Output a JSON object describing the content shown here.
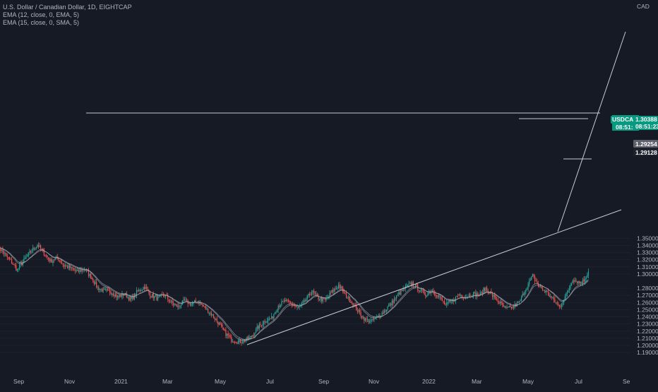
{
  "header": {
    "symbol_line": "U.S. Dollar / Canadian Dollar, 1D, EIGHTCAP",
    "indicator_1": "EMA (12, close, 0, EMA, 5)",
    "indicator_2": "EMA (15, close, 0, SMA, 5)"
  },
  "chart_data": {
    "type": "candlestick",
    "currency_label": "CAD",
    "y_ticks": [
      "1.35000",
      "1.34000",
      "1.33000",
      "1.32000",
      "1.31000",
      "1.30000",
      "1.28000",
      "1.27000",
      "1.26000",
      "1.25000",
      "1.24000",
      "1.23000",
      "1.22000",
      "1.21000",
      "1.20000",
      "1.19000"
    ],
    "x_ticks": [
      "Sep",
      "Nov",
      "2021",
      "Mar",
      "May",
      "Jul",
      "Sep",
      "Nov",
      "2022",
      "Mar",
      "May",
      "Jul",
      "Se"
    ],
    "ylim": [
      1.1852,
      1.3612
    ],
    "price_labels": {
      "symbol": "USDCAD",
      "last_price": "1.30388",
      "countdown": "08:51:23",
      "label_a": "1.29254",
      "label_b": "1.29128"
    },
    "colors": {
      "up": "#26a69a",
      "down": "#ef5350",
      "background": "#161a25",
      "ema": "#a9acb5",
      "trendline": "#c8cad3",
      "tag": "#089981"
    },
    "path_anchors": [
      {
        "i": 0,
        "v": 1.34
      },
      {
        "i": 6,
        "v": 1.329
      },
      {
        "i": 12,
        "v": 1.318
      },
      {
        "i": 18,
        "v": 1.306
      },
      {
        "i": 24,
        "v": 1.319
      },
      {
        "i": 30,
        "v": 1.331
      },
      {
        "i": 36,
        "v": 1.341
      },
      {
        "i": 42,
        "v": 1.329
      },
      {
        "i": 48,
        "v": 1.318
      },
      {
        "i": 54,
        "v": 1.322
      },
      {
        "i": 60,
        "v": 1.312
      },
      {
        "i": 66,
        "v": 1.308
      },
      {
        "i": 72,
        "v": 1.303
      },
      {
        "i": 78,
        "v": 1.307
      },
      {
        "i": 84,
        "v": 1.296
      },
      {
        "i": 90,
        "v": 1.281
      },
      {
        "i": 96,
        "v": 1.276
      },
      {
        "i": 102,
        "v": 1.275
      },
      {
        "i": 108,
        "v": 1.268
      },
      {
        "i": 114,
        "v": 1.272
      },
      {
        "i": 120,
        "v": 1.264
      },
      {
        "i": 126,
        "v": 1.276
      },
      {
        "i": 132,
        "v": 1.282
      },
      {
        "i": 138,
        "v": 1.27
      },
      {
        "i": 144,
        "v": 1.266
      },
      {
        "i": 150,
        "v": 1.271
      },
      {
        "i": 156,
        "v": 1.26
      },
      {
        "i": 162,
        "v": 1.254
      },
      {
        "i": 168,
        "v": 1.262
      },
      {
        "i": 174,
        "v": 1.258
      },
      {
        "i": 180,
        "v": 1.262
      },
      {
        "i": 186,
        "v": 1.253
      },
      {
        "i": 192,
        "v": 1.244
      },
      {
        "i": 198,
        "v": 1.232
      },
      {
        "i": 204,
        "v": 1.218
      },
      {
        "i": 210,
        "v": 1.208
      },
      {
        "i": 216,
        "v": 1.205
      },
      {
        "i": 222,
        "v": 1.207
      },
      {
        "i": 228,
        "v": 1.212
      },
      {
        "i": 234,
        "v": 1.226
      },
      {
        "i": 240,
        "v": 1.235
      },
      {
        "i": 246,
        "v": 1.238
      },
      {
        "i": 252,
        "v": 1.256
      },
      {
        "i": 258,
        "v": 1.262
      },
      {
        "i": 264,
        "v": 1.258
      },
      {
        "i": 270,
        "v": 1.252
      },
      {
        "i": 276,
        "v": 1.262
      },
      {
        "i": 282,
        "v": 1.276
      },
      {
        "i": 288,
        "v": 1.266
      },
      {
        "i": 294,
        "v": 1.263
      },
      {
        "i": 300,
        "v": 1.275
      },
      {
        "i": 306,
        "v": 1.284
      },
      {
        "i": 312,
        "v": 1.271
      },
      {
        "i": 318,
        "v": 1.26
      },
      {
        "i": 324,
        "v": 1.247
      },
      {
        "i": 330,
        "v": 1.236
      },
      {
        "i": 336,
        "v": 1.234
      },
      {
        "i": 342,
        "v": 1.241
      },
      {
        "i": 348,
        "v": 1.25
      },
      {
        "i": 354,
        "v": 1.26
      },
      {
        "i": 360,
        "v": 1.272
      },
      {
        "i": 366,
        "v": 1.281
      },
      {
        "i": 372,
        "v": 1.287
      },
      {
        "i": 378,
        "v": 1.279
      },
      {
        "i": 384,
        "v": 1.271
      },
      {
        "i": 390,
        "v": 1.277
      },
      {
        "i": 396,
        "v": 1.268
      },
      {
        "i": 402,
        "v": 1.256
      },
      {
        "i": 408,
        "v": 1.262
      },
      {
        "i": 414,
        "v": 1.271
      },
      {
        "i": 420,
        "v": 1.268
      },
      {
        "i": 426,
        "v": 1.273
      },
      {
        "i": 432,
        "v": 1.27
      },
      {
        "i": 438,
        "v": 1.28
      },
      {
        "i": 444,
        "v": 1.27
      },
      {
        "i": 450,
        "v": 1.26
      },
      {
        "i": 456,
        "v": 1.251
      },
      {
        "i": 462,
        "v": 1.253
      },
      {
        "i": 468,
        "v": 1.26
      },
      {
        "i": 474,
        "v": 1.28
      },
      {
        "i": 480,
        "v": 1.297
      },
      {
        "i": 486,
        "v": 1.282
      },
      {
        "i": 492,
        "v": 1.275
      },
      {
        "i": 498,
        "v": 1.265
      },
      {
        "i": 504,
        "v": 1.254
      },
      {
        "i": 510,
        "v": 1.27
      },
      {
        "i": 516,
        "v": 1.293
      },
      {
        "i": 522,
        "v": 1.288
      },
      {
        "i": 526,
        "v": 1.291
      },
      {
        "i": 530,
        "v": 1.3039
      }
    ]
  }
}
